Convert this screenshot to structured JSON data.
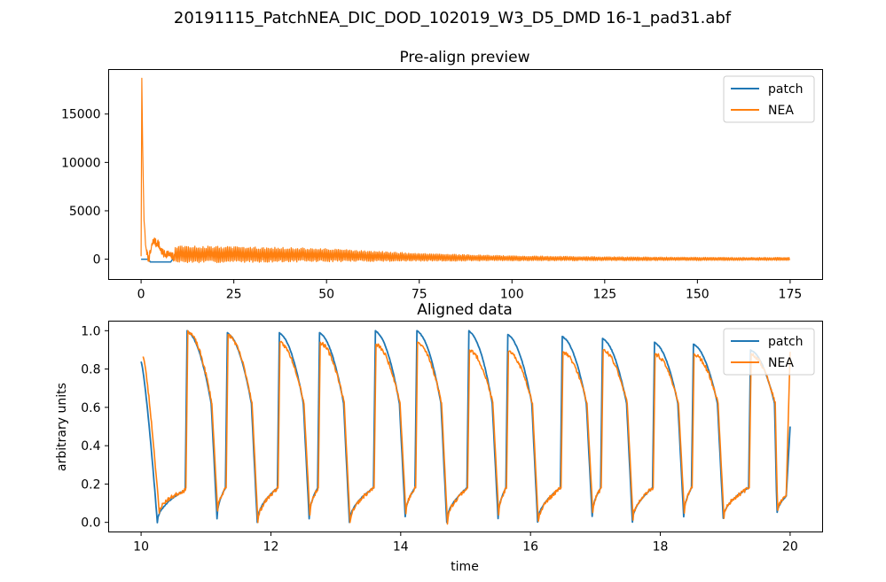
{
  "figure": {
    "suptitle": "20191115_PatchNEA_DIC_DOD_102019_W3_D5_DMD 16-1_pad31.abf"
  },
  "colors": {
    "patch": "#1f77b4",
    "NEA": "#ff7f0e"
  },
  "chart_data": [
    {
      "type": "line",
      "title": "Pre-align preview",
      "xlabel": "",
      "ylabel": "",
      "xlim": [
        -8.75,
        183.75
      ],
      "ylim": [
        -2100,
        19600
      ],
      "xticks": [
        0,
        25,
        50,
        75,
        100,
        125,
        150,
        175
      ],
      "yticks": [
        0,
        5000,
        10000,
        15000
      ],
      "legend": {
        "position": "top-right",
        "entries": [
          "patch",
          "NEA"
        ]
      },
      "grid": false,
      "series": [
        {
          "name": "patch",
          "x": [
            0,
            2,
            2.5,
            4,
            6,
            8,
            8.5,
            9
          ],
          "y": [
            0,
            0,
            -300,
            -300,
            -300,
            -300,
            0,
            0
          ]
        },
        {
          "name": "NEA",
          "x": [
            0,
            0.2,
            0.4,
            0.6,
            0.8,
            1.0,
            1.2,
            1.5,
            1.8,
            2.0,
            2.5,
            3,
            3.5,
            4,
            4.5,
            5,
            6,
            7,
            8,
            9,
            10,
            25,
            40,
            50,
            60,
            75,
            90,
            100,
            125,
            150,
            175
          ],
          "y": [
            300,
            18700,
            12000,
            7800,
            4000,
            3000,
            1500,
            700,
            300,
            0,
            600,
            1500,
            2000,
            1600,
            1800,
            1200,
            500,
            600,
            300,
            200,
            1200,
            1000,
            900,
            800,
            600,
            400,
            300,
            200,
            150,
            120,
            100
          ],
          "envelope": {
            "x": [
              9,
              10,
              25,
              40,
              50,
              60,
              75,
              90,
              100,
              125,
              150,
              175
            ],
            "upper": [
              1200,
              1400,
              1300,
              1200,
              1100,
              900,
              600,
              450,
              350,
              250,
              200,
              180
            ],
            "lower": [
              -300,
              -400,
              -350,
              -300,
              -280,
              -250,
              -220,
              -200,
              -180,
              -160,
              -150,
              -140
            ]
          }
        }
      ]
    },
    {
      "type": "line",
      "title": "Aligned data",
      "xlabel": "time",
      "ylabel": "arbitrary units",
      "xlim": [
        9.5,
        20.5
      ],
      "ylim": [
        -0.05,
        1.05
      ],
      "xticks": [
        10,
        12,
        14,
        16,
        18,
        20
      ],
      "yticks": [
        0.0,
        0.2,
        0.4,
        0.6,
        0.8,
        1.0
      ],
      "legend": {
        "position": "top-right",
        "entries": [
          "patch",
          "NEA"
        ]
      },
      "grid": false,
      "beat_onsets": [
        10.68,
        11.3,
        12.1,
        12.72,
        13.58,
        14.22,
        15.02,
        15.62,
        16.46,
        17.08,
        17.88,
        18.48,
        19.36
      ],
      "series": [
        {
          "name": "patch",
          "x_start": 10.0,
          "x_end": 20.0,
          "start_value": 0.84,
          "end_value": 0.5,
          "peaks": [
            1.0,
            0.99,
            0.99,
            0.99,
            1.0,
            1.0,
            1.0,
            0.98,
            0.97,
            0.96,
            0.94,
            0.93,
            0.9
          ],
          "troughs": [
            0.0,
            0.02,
            0.0,
            0.02,
            0.0,
            0.03,
            0.0,
            0.02,
            0.0,
            0.03,
            0.0,
            0.03,
            0.02,
            0.04
          ]
        },
        {
          "name": "NEA",
          "x_start": 10.03,
          "x_end": 20.0,
          "start_value": 0.87,
          "end_value": 0.89,
          "peaks": [
            1.0,
            0.98,
            0.94,
            0.94,
            0.93,
            0.94,
            0.9,
            0.89,
            0.89,
            0.9,
            0.88,
            0.88,
            0.88
          ],
          "troughs": [
            0.05,
            0.06,
            0.0,
            0.04,
            0.0,
            0.05,
            0.0,
            0.04,
            0.0,
            0.05,
            0.02,
            0.05,
            0.03,
            0.06
          ]
        }
      ]
    }
  ]
}
